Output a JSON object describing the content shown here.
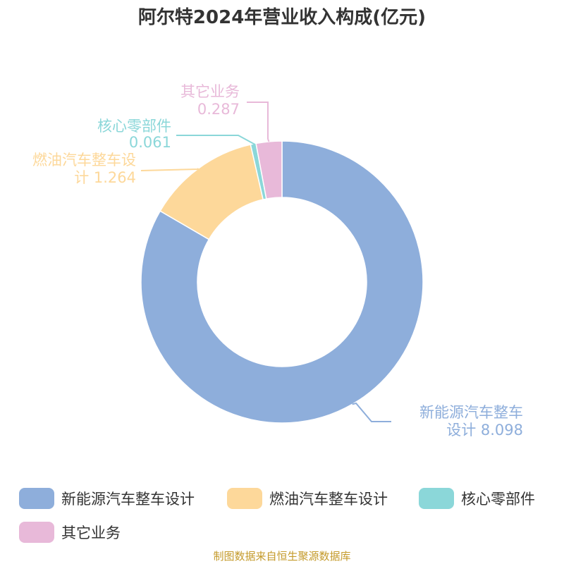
{
  "title": "阿尔特2024年营业收入构成(亿元)",
  "source": "制图数据来自恒生聚源数据库",
  "chart_data": {
    "type": "pie",
    "variant": "donut",
    "title": "阿尔特2024年营业收入构成(亿元)",
    "slices": [
      {
        "name": "新能源汽车整车设计",
        "value": 8.098,
        "color": "#8eaedb",
        "label_lines": [
          "新能源汽车整车",
          "设计 8.098"
        ]
      },
      {
        "name": "燃油汽车整车设计",
        "value": 1.264,
        "color": "#fdd89a",
        "label_lines": [
          "燃油汽车整车设",
          "计 1.264"
        ]
      },
      {
        "name": "核心零部件",
        "value": 0.061,
        "color": "#8bd7d9",
        "label_lines": [
          "核心零部件",
          "0.061"
        ]
      },
      {
        "name": "其它业务",
        "value": 0.287,
        "color": "#e8b9d9",
        "label_lines": [
          "其它业务",
          "0.287"
        ]
      }
    ],
    "legend_position": "bottom"
  }
}
